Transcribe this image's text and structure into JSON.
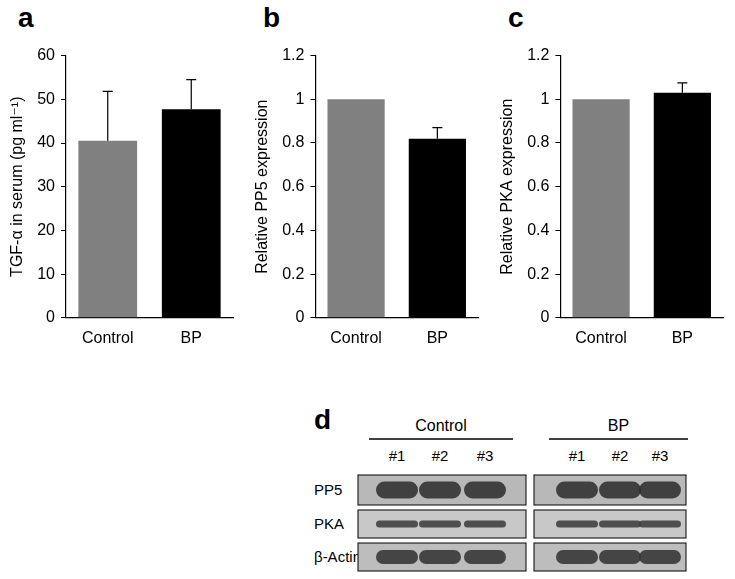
{
  "chart_data": [
    {
      "type": "bar",
      "title": "a",
      "categories": [
        "Control",
        "BP"
      ],
      "values": [
        40.5,
        47.7
      ],
      "errors": [
        11.3,
        6.8
      ],
      "colors": [
        "#808080",
        "#000000"
      ],
      "ylabel": "TGF-α in serum (pg ml⁻¹)",
      "ylim": [
        0,
        60
      ],
      "yticks": [
        0,
        10,
        20,
        30,
        40,
        50,
        60
      ],
      "grid": false
    },
    {
      "type": "bar",
      "title": "b",
      "categories": [
        "Control",
        "BP"
      ],
      "values": [
        1,
        0.82
      ],
      "errors": [
        null,
        0.05
      ],
      "colors": [
        "#808080",
        "#000000"
      ],
      "ylabel": "Relative PP5 expression",
      "ylim": [
        0,
        1.2
      ],
      "yticks": [
        0,
        0.2,
        0.4,
        0.6,
        0.8,
        1,
        1.2
      ],
      "grid": false
    },
    {
      "type": "bar",
      "title": "c",
      "categories": [
        "Control",
        "BP"
      ],
      "values": [
        1,
        1.03
      ],
      "errors": [
        null,
        0.045
      ],
      "colors": [
        "#808080",
        "#000000"
      ],
      "ylabel": "Relative PKA expression",
      "ylim": [
        0,
        1.2
      ],
      "yticks": [
        0,
        0.2,
        0.4,
        0.6,
        0.8,
        1,
        1.2
      ],
      "grid": false
    }
  ],
  "blot": {
    "title": "d",
    "groups": [
      {
        "name": "Control",
        "lanes": [
          "#1",
          "#2",
          "#3"
        ]
      },
      {
        "name": "BP",
        "lanes": [
          "#1",
          "#2",
          "#3"
        ]
      }
    ],
    "rows": [
      "PP5",
      "PKA",
      "β-Actin"
    ]
  }
}
